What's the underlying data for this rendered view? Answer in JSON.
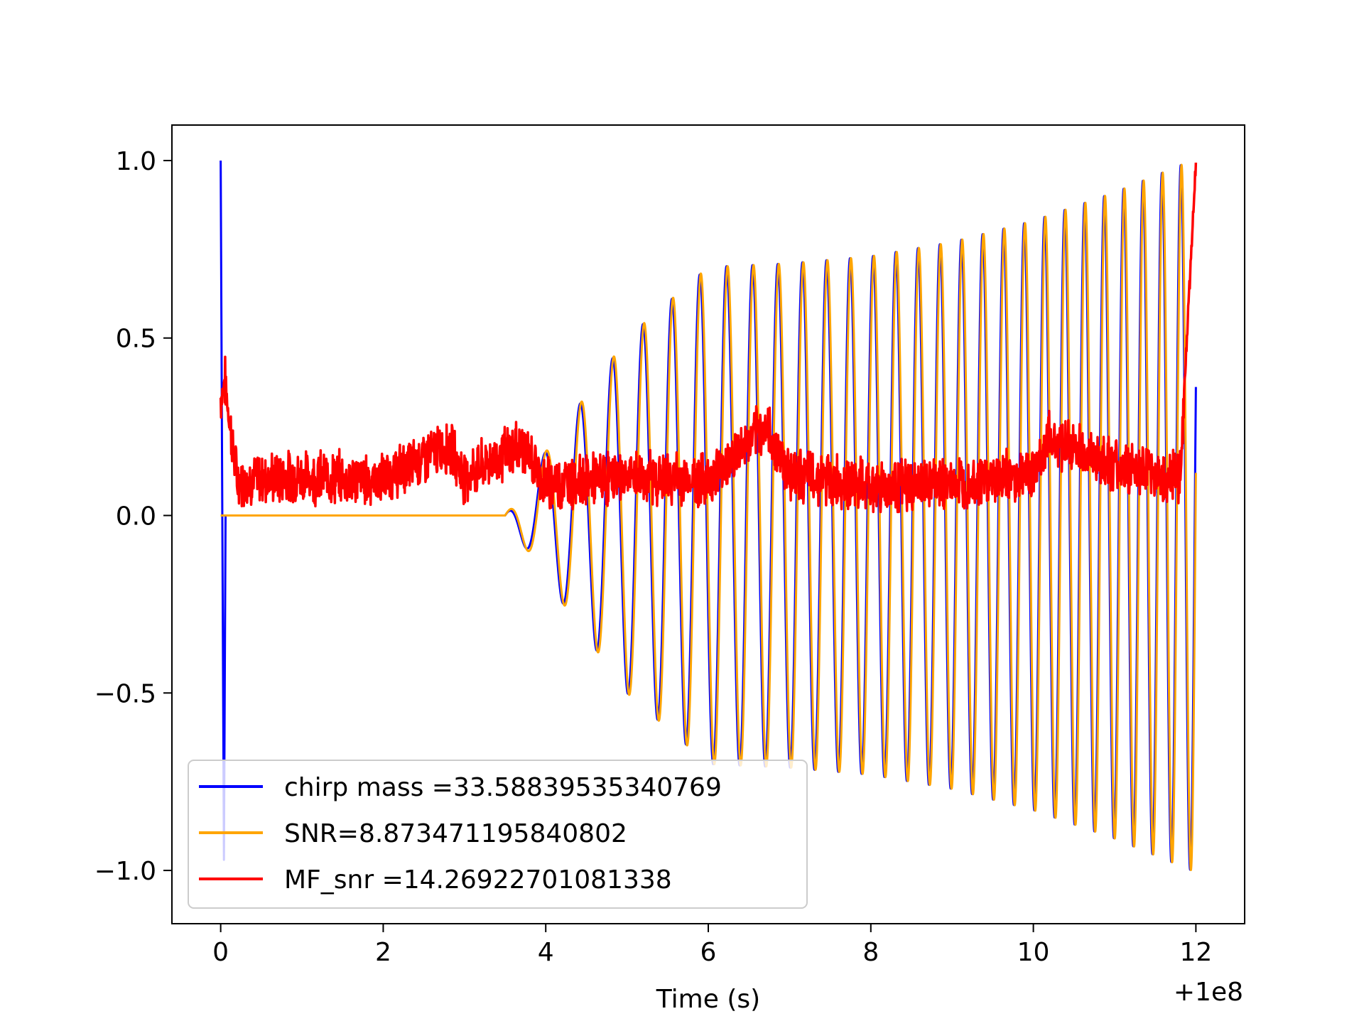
{
  "chart_data": {
    "type": "line",
    "title": "",
    "xlabel": "Time (s)",
    "ylabel": "",
    "x_offset_label": "+1e8",
    "xlim": [
      -0.6,
      12.6
    ],
    "ylim": [
      -1.15,
      1.1
    ],
    "xticks": [
      0,
      2,
      4,
      6,
      8,
      10,
      12
    ],
    "xtick_labels": [
      "0",
      "2",
      "4",
      "6",
      "8",
      "10",
      "12"
    ],
    "yticks": [
      1.0,
      0.5,
      0.0,
      -0.5,
      -1.0
    ],
    "ytick_labels": [
      "1.0",
      "0.5",
      "0.0",
      "−0.5",
      "−1.0"
    ],
    "grid": false,
    "legend_position": "lower-left",
    "series": [
      {
        "name": "chirp mass =33.58839535340769",
        "color": "#0000ff",
        "description_points": {
          "x": [
            0.0,
            0.02,
            0.04,
            0.06,
            3.5,
            4.0,
            5.0,
            6.0,
            7.0,
            8.0,
            9.0,
            10.0,
            11.0,
            11.95,
            12.0
          ],
          "y_envelope": [
            1.0,
            0.0,
            -0.97,
            0.0,
            0.0,
            0.18,
            0.5,
            0.7,
            0.71,
            0.73,
            0.77,
            0.83,
            0.91,
            1.0,
            1.0
          ]
        }
      },
      {
        "name": "SNR=8.873471195840802",
        "color": "#ffa500",
        "description_points": {
          "x": [
            0.0,
            3.5,
            4.0,
            5.0,
            6.0,
            7.0,
            8.0,
            9.0,
            10.0,
            11.0,
            11.95,
            12.0
          ],
          "y_envelope": [
            0.0,
            0.0,
            0.18,
            0.5,
            0.7,
            0.71,
            0.73,
            0.77,
            0.83,
            0.91,
            1.0,
            1.0
          ]
        }
      },
      {
        "name": "MF_snr =14.26922701081338",
        "color": "#ff0000",
        "description_points": {
          "x": [
            0.0,
            0.05,
            0.2,
            1.0,
            2.0,
            2.8,
            3.0,
            3.7,
            4.0,
            5.0,
            6.0,
            6.7,
            7.0,
            8.0,
            9.0,
            10.0,
            10.2,
            11.0,
            11.8,
            12.0
          ],
          "y": [
            0.33,
            0.38,
            0.1,
            0.11,
            0.1,
            0.2,
            0.11,
            0.2,
            0.09,
            0.11,
            0.1,
            0.25,
            0.12,
            0.08,
            0.09,
            0.12,
            0.22,
            0.14,
            0.1,
            1.0
          ]
        }
      }
    ]
  }
}
